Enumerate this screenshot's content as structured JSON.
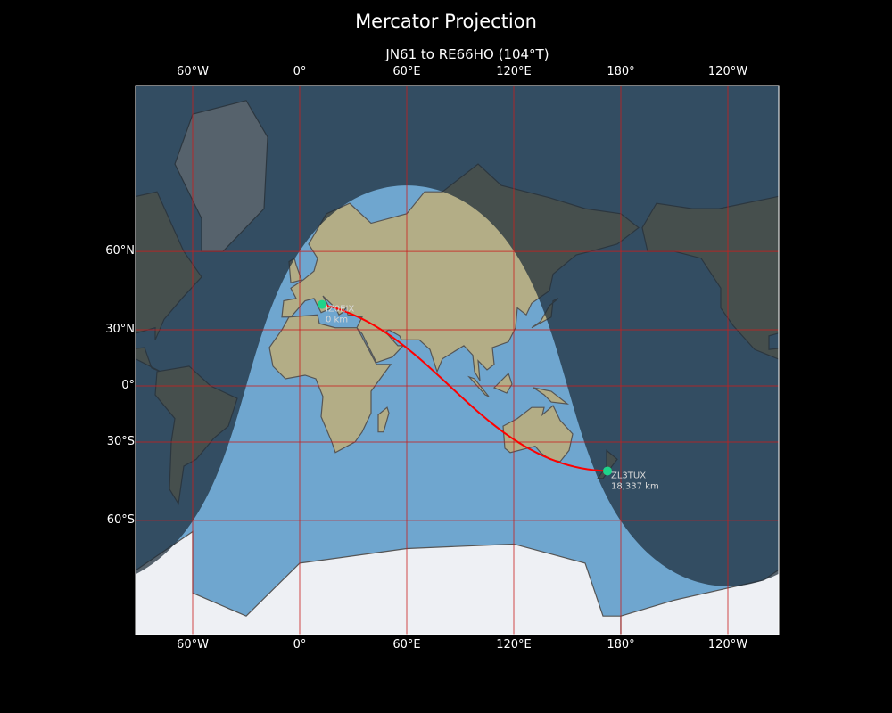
{
  "title": "Mercator Projection",
  "subtitle": "JN61 to RE66HO (104°T)",
  "lon_ticks": [
    {
      "lon": -60,
      "label": "60°W"
    },
    {
      "lon": 0,
      "label": "0°"
    },
    {
      "lon": 60,
      "label": "60°E"
    },
    {
      "lon": 120,
      "label": "120°E"
    },
    {
      "lon": 180,
      "label": "180°"
    },
    {
      "lon": 240,
      "label": "120°W"
    }
  ],
  "lat_ticks": [
    {
      "lat": 60,
      "label": "60°N"
    },
    {
      "lat": 30,
      "label": "30°N"
    },
    {
      "lat": 0,
      "label": "0°"
    },
    {
      "lat": -30,
      "label": "30°S"
    },
    {
      "lat": -60,
      "label": "60°S"
    }
  ],
  "stations": [
    {
      "call": "IZ0EIX",
      "distance": "0 km",
      "lon": 12.5,
      "lat": 41.5
    },
    {
      "call": "ZL3TUX",
      "distance": "18,337 km",
      "lon": 172.5,
      "lat": -43.0
    }
  ],
  "subsolar": {
    "lon": 60,
    "declination": -16
  },
  "colors": {
    "ocean": "#6fa6cf",
    "land": "#b3ad86",
    "ice": "#eef0f4",
    "night": "#1c2b38",
    "grid": "#c81e1e",
    "path": "#ff0000",
    "marker": "#1fd38a"
  }
}
